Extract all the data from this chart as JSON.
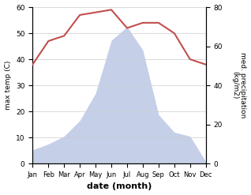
{
  "months": [
    "Jan",
    "Feb",
    "Mar",
    "Apr",
    "May",
    "Jun",
    "Jul",
    "Aug",
    "Sep",
    "Oct",
    "Nov",
    "Dec"
  ],
  "temp": [
    38,
    47,
    49,
    57,
    58,
    59,
    52,
    54,
    54,
    50,
    40,
    38
  ],
  "precip": [
    7,
    10,
    14,
    22,
    36,
    63,
    70,
    58,
    25,
    16,
    14,
    1
  ],
  "temp_color": "#c0504d",
  "precip_fill_color": "#c5cfe8",
  "xlabel": "date (month)",
  "ylabel_left": "max temp (C)",
  "ylabel_right": "med. precipitation\n(kg/m2)",
  "ylim_left": [
    0,
    60
  ],
  "ylim_right": [
    0,
    80
  ],
  "bg_color": "#ffffff"
}
